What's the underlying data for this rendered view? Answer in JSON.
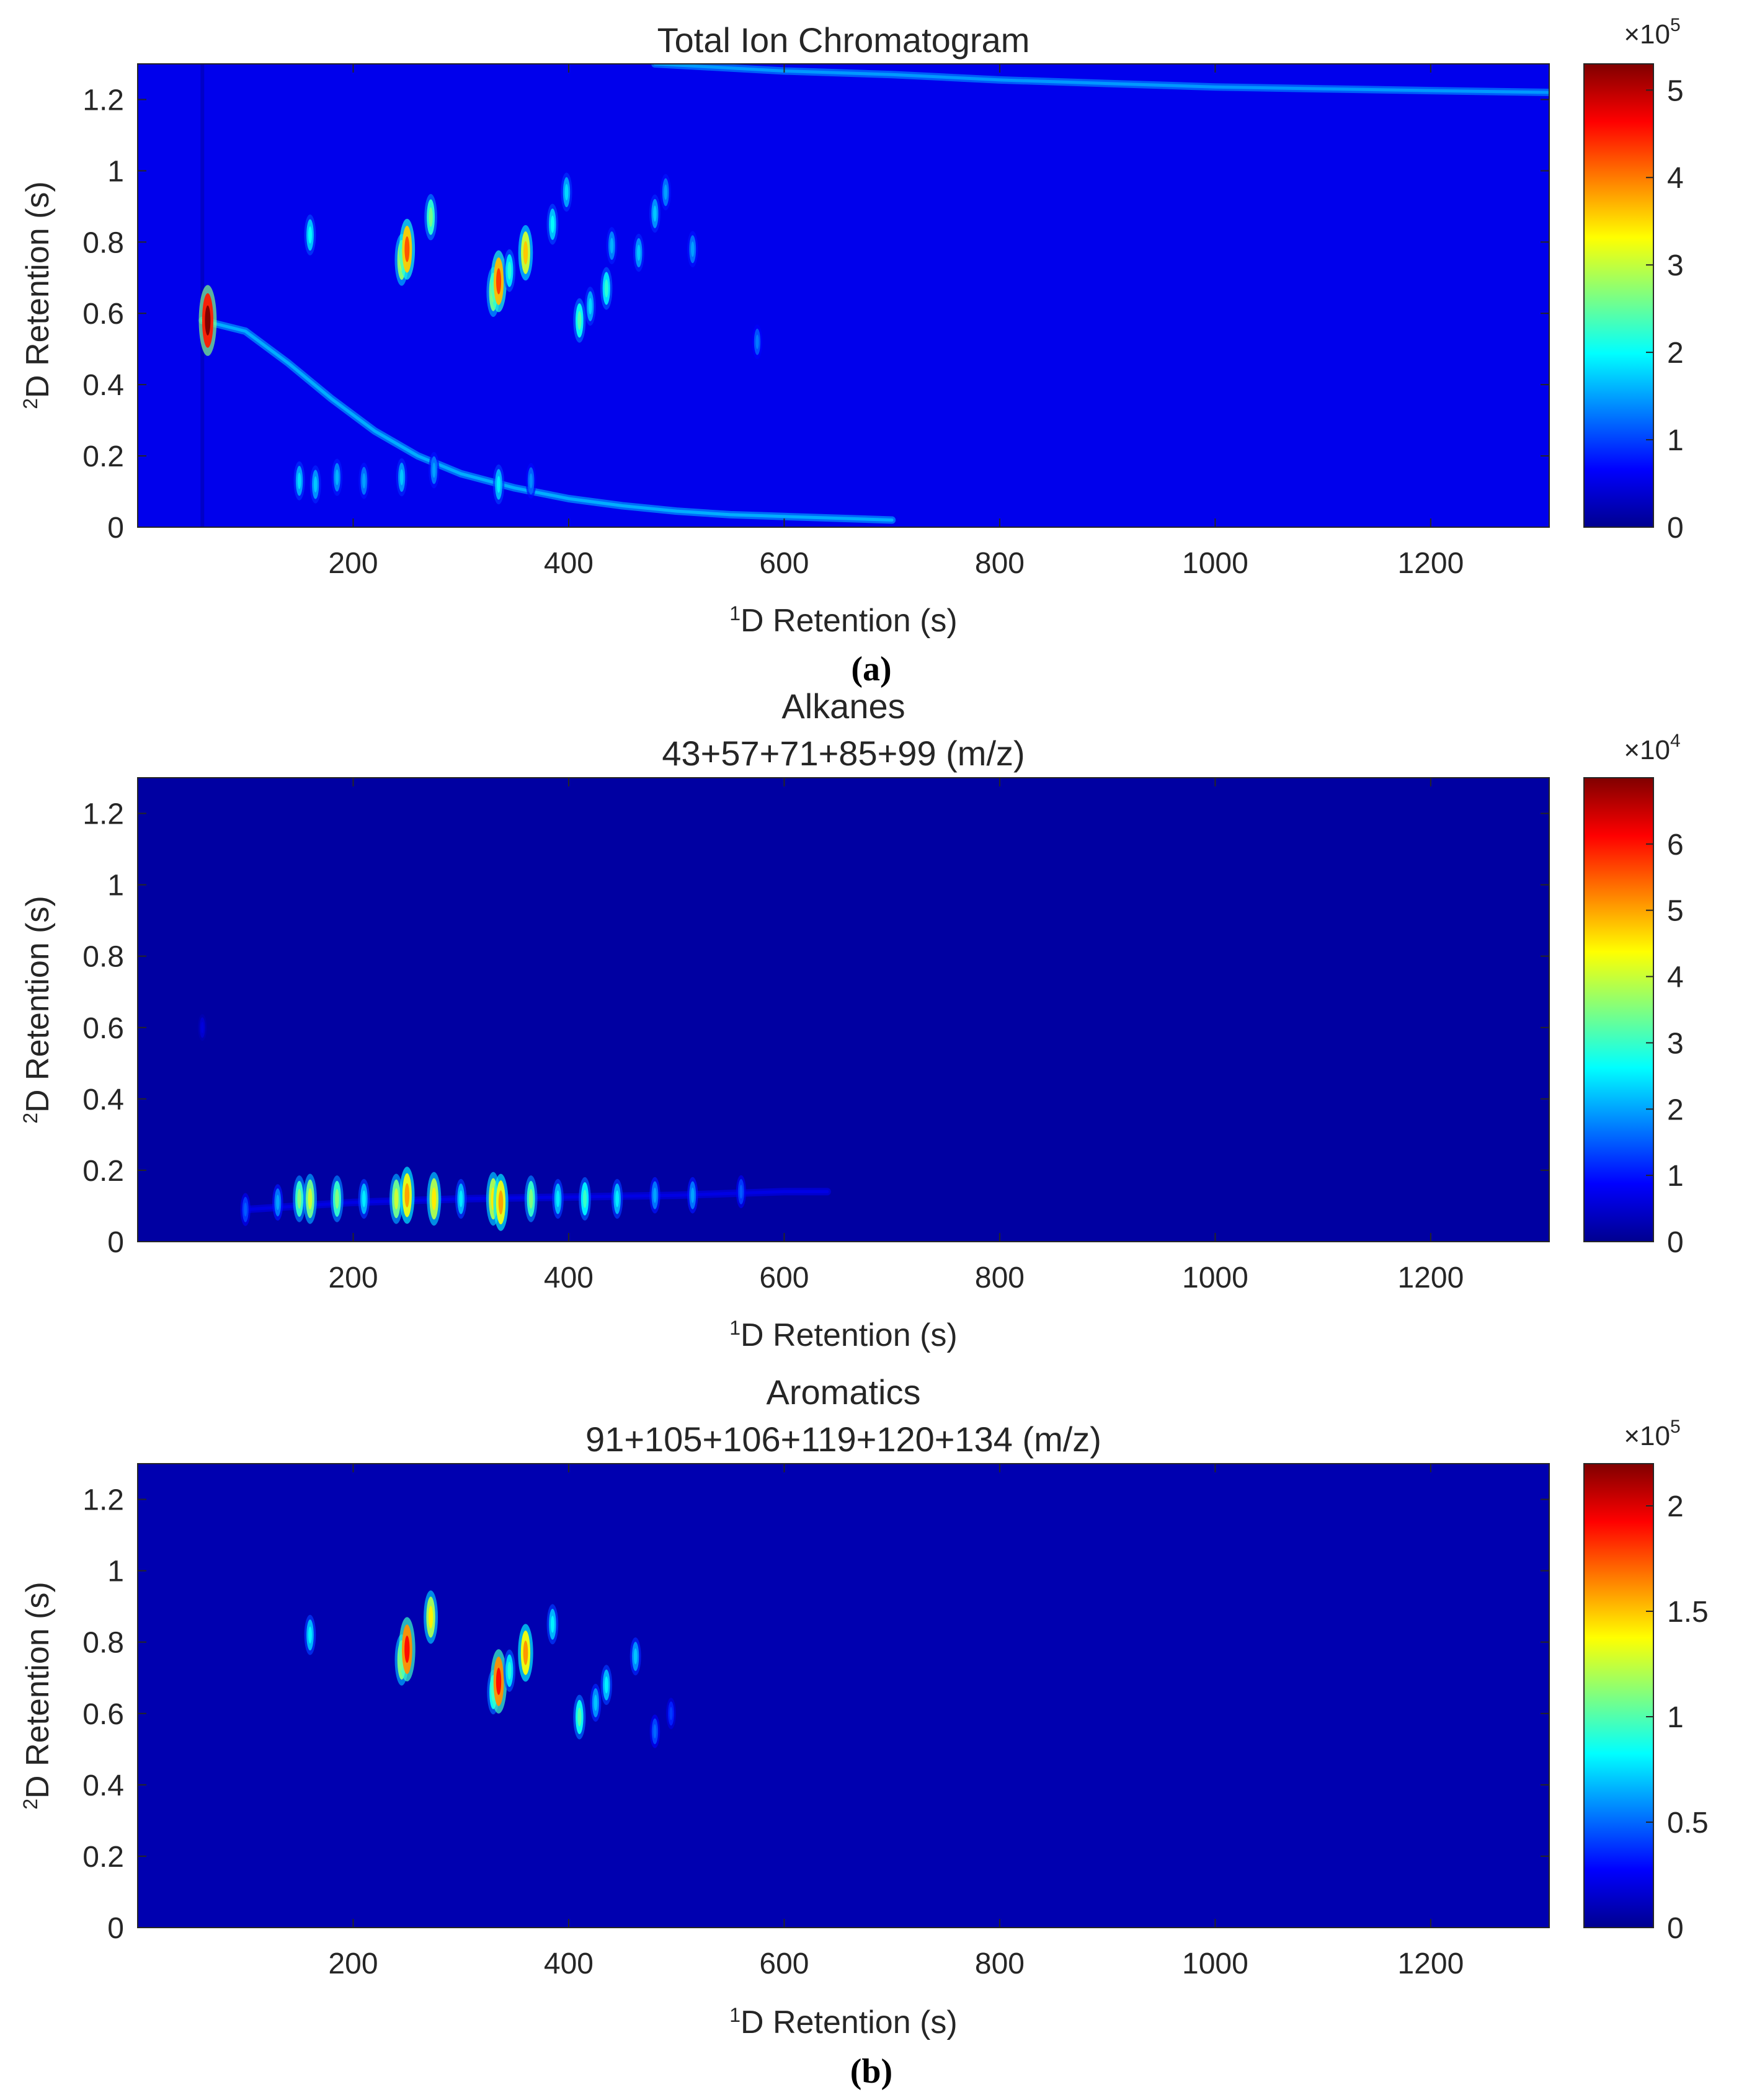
{
  "figure": {
    "captions": [
      "(a)",
      "(b)"
    ]
  },
  "colormap": "jet",
  "chart_data": [
    {
      "type": "heatmap",
      "title": "Total Ion Chromatogram",
      "subtitle": "",
      "xlabel": {
        "sup": "1",
        "text": "D Retention (s)"
      },
      "ylabel": {
        "sup": "2",
        "text": "D Retention (s)"
      },
      "xlim": [
        0,
        1310
      ],
      "ylim": [
        0,
        1.3
      ],
      "xticks": [
        200,
        400,
        600,
        800,
        1000,
        1200
      ],
      "xtick_labels": [
        "200",
        "400",
        "600",
        "800",
        "1000",
        "1200"
      ],
      "yticks": [
        0,
        0.2,
        0.4,
        0.6,
        0.8,
        1,
        1.2
      ],
      "ytick_labels": [
        "0",
        "0.2",
        "0.4",
        "0.6",
        "0.8",
        "1",
        "1.2"
      ],
      "colorbar": {
        "range": [
          0,
          5.3
        ],
        "ticks": [
          0,
          1,
          2,
          3,
          4,
          5
        ],
        "tick_labels": [
          "0",
          "1",
          "2",
          "3",
          "4",
          "5"
        ],
        "multiplier": {
          "base": "×10",
          "exp": "5"
        }
      },
      "background": 0.55,
      "column_bleed": {
        "x": 60,
        "y_max": 1.3,
        "value": 0.3
      },
      "bands": [
        {
          "name": "solvent-tail",
          "x": [
            60,
            100,
            140,
            180,
            220,
            260,
            300,
            350,
            400,
            450,
            500,
            550,
            600,
            700
          ],
          "y": [
            0.58,
            0.55,
            0.46,
            0.36,
            0.27,
            0.2,
            0.15,
            0.11,
            0.08,
            0.06,
            0.045,
            0.035,
            0.03,
            0.02
          ],
          "value": 1.4
        },
        {
          "name": "upper-baseline",
          "x": [
            480,
            600,
            700,
            800,
            900,
            1000,
            1100,
            1200,
            1310
          ],
          "y": [
            1.3,
            1.28,
            1.27,
            1.255,
            1.245,
            1.235,
            1.23,
            1.225,
            1.22
          ],
          "value": 1.3
        }
      ],
      "peaks": [
        {
          "x": 65,
          "y": 0.58,
          "value": 5.3
        },
        {
          "x": 160,
          "y": 0.82,
          "value": 2.0
        },
        {
          "x": 245,
          "y": 0.75,
          "value": 3.2
        },
        {
          "x": 250,
          "y": 0.78,
          "value": 4.2
        },
        {
          "x": 272,
          "y": 0.87,
          "value": 2.6
        },
        {
          "x": 330,
          "y": 0.66,
          "value": 3.0
        },
        {
          "x": 335,
          "y": 0.69,
          "value": 4.3
        },
        {
          "x": 345,
          "y": 0.72,
          "value": 2.2
        },
        {
          "x": 360,
          "y": 0.77,
          "value": 3.6
        },
        {
          "x": 385,
          "y": 0.85,
          "value": 2.0
        },
        {
          "x": 398,
          "y": 0.94,
          "value": 1.8
        },
        {
          "x": 410,
          "y": 0.58,
          "value": 2.4
        },
        {
          "x": 420,
          "y": 0.62,
          "value": 1.8
        },
        {
          "x": 435,
          "y": 0.67,
          "value": 2.2
        },
        {
          "x": 440,
          "y": 0.79,
          "value": 1.6
        },
        {
          "x": 465,
          "y": 0.77,
          "value": 1.7
        },
        {
          "x": 480,
          "y": 0.88,
          "value": 1.7
        },
        {
          "x": 490,
          "y": 0.94,
          "value": 1.5
        },
        {
          "x": 515,
          "y": 0.78,
          "value": 1.5
        },
        {
          "x": 575,
          "y": 0.52,
          "value": 1.3
        },
        {
          "x": 150,
          "y": 0.13,
          "value": 1.8
        },
        {
          "x": 165,
          "y": 0.12,
          "value": 1.7
        },
        {
          "x": 185,
          "y": 0.14,
          "value": 1.6
        },
        {
          "x": 210,
          "y": 0.13,
          "value": 1.5
        },
        {
          "x": 245,
          "y": 0.14,
          "value": 1.7
        },
        {
          "x": 275,
          "y": 0.16,
          "value": 1.5
        },
        {
          "x": 335,
          "y": 0.12,
          "value": 1.9
        },
        {
          "x": 365,
          "y": 0.13,
          "value": 1.4
        }
      ]
    },
    {
      "type": "heatmap",
      "title": "Alkanes",
      "subtitle": "43+57+71+85+99 (m/z)",
      "xlabel": {
        "sup": "1",
        "text": "D Retention (s)"
      },
      "ylabel": {
        "sup": "2",
        "text": "D Retention (s)"
      },
      "xlim": [
        0,
        1310
      ],
      "ylim": [
        0,
        1.3
      ],
      "xticks": [
        200,
        400,
        600,
        800,
        1000,
        1200
      ],
      "xtick_labels": [
        "200",
        "400",
        "600",
        "800",
        "1000",
        "1200"
      ],
      "yticks": [
        0,
        0.2,
        0.4,
        0.6,
        0.8,
        1,
        1.2
      ],
      "ytick_labels": [
        "0",
        "0.2",
        "0.4",
        "0.6",
        "0.8",
        "1",
        "1.2"
      ],
      "colorbar": {
        "range": [
          0,
          7
        ],
        "ticks": [
          0,
          1,
          2,
          3,
          4,
          5,
          6
        ],
        "tick_labels": [
          "0",
          "1",
          "2",
          "3",
          "4",
          "5",
          "6"
        ],
        "multiplier": {
          "base": "×10",
          "exp": "4"
        }
      },
      "background": 0.15,
      "column_bleed": null,
      "bands": [
        {
          "name": "alkane-row",
          "x": [
            100,
            200,
            300,
            400,
            500,
            600,
            640
          ],
          "y": [
            0.09,
            0.11,
            0.12,
            0.125,
            0.13,
            0.14,
            0.14
          ],
          "value": 0.6
        }
      ],
      "peaks": [
        {
          "x": 60,
          "y": 0.6,
          "value": 0.6
        },
        {
          "x": 100,
          "y": 0.09,
          "value": 1.5
        },
        {
          "x": 130,
          "y": 0.11,
          "value": 2.0
        },
        {
          "x": 150,
          "y": 0.12,
          "value": 3.5
        },
        {
          "x": 160,
          "y": 0.12,
          "value": 4.0
        },
        {
          "x": 185,
          "y": 0.12,
          "value": 3.5
        },
        {
          "x": 210,
          "y": 0.12,
          "value": 2.5
        },
        {
          "x": 240,
          "y": 0.12,
          "value": 4.0
        },
        {
          "x": 250,
          "y": 0.13,
          "value": 5.0
        },
        {
          "x": 275,
          "y": 0.12,
          "value": 4.5
        },
        {
          "x": 300,
          "y": 0.12,
          "value": 2.5
        },
        {
          "x": 330,
          "y": 0.12,
          "value": 4.5
        },
        {
          "x": 337,
          "y": 0.11,
          "value": 5.0
        },
        {
          "x": 365,
          "y": 0.12,
          "value": 3.5
        },
        {
          "x": 390,
          "y": 0.12,
          "value": 2.5
        },
        {
          "x": 415,
          "y": 0.12,
          "value": 3.0
        },
        {
          "x": 445,
          "y": 0.12,
          "value": 2.5
        },
        {
          "x": 480,
          "y": 0.13,
          "value": 2.0
        },
        {
          "x": 515,
          "y": 0.13,
          "value": 2.0
        },
        {
          "x": 560,
          "y": 0.14,
          "value": 1.5
        }
      ]
    },
    {
      "type": "heatmap",
      "title": "Aromatics",
      "subtitle": "91+105+106+119+120+134 (m/z)",
      "xlabel": {
        "sup": "1",
        "text": "D Retention (s)"
      },
      "ylabel": {
        "sup": "2",
        "text": "D Retention (s)"
      },
      "xlim": [
        0,
        1310
      ],
      "ylim": [
        0,
        1.3
      ],
      "xticks": [
        200,
        400,
        600,
        800,
        1000,
        1200
      ],
      "xtick_labels": [
        "200",
        "400",
        "600",
        "800",
        "1000",
        "1200"
      ],
      "yticks": [
        0,
        0.2,
        0.4,
        0.6,
        0.8,
        1,
        1.2
      ],
      "ytick_labels": [
        "0",
        "0.2",
        "0.4",
        "0.6",
        "0.8",
        "1",
        "1.2"
      ],
      "colorbar": {
        "range": [
          0,
          2.2
        ],
        "ticks": [
          0,
          0.5,
          1,
          1.5,
          2
        ],
        "tick_labels": [
          "0",
          "0.5",
          "1",
          "1.5",
          "2"
        ],
        "multiplier": {
          "base": "×10",
          "exp": "5"
        }
      },
      "background": 0.08,
      "column_bleed": null,
      "bands": [],
      "peaks": [
        {
          "x": 160,
          "y": 0.82,
          "value": 0.8
        },
        {
          "x": 245,
          "y": 0.75,
          "value": 1.3
        },
        {
          "x": 250,
          "y": 0.78,
          "value": 1.9
        },
        {
          "x": 272,
          "y": 0.87,
          "value": 1.4
        },
        {
          "x": 330,
          "y": 0.66,
          "value": 1.0
        },
        {
          "x": 335,
          "y": 0.69,
          "value": 1.9
        },
        {
          "x": 345,
          "y": 0.72,
          "value": 0.9
        },
        {
          "x": 360,
          "y": 0.77,
          "value": 1.6
        },
        {
          "x": 385,
          "y": 0.85,
          "value": 0.8
        },
        {
          "x": 410,
          "y": 0.59,
          "value": 1.0
        },
        {
          "x": 425,
          "y": 0.63,
          "value": 0.7
        },
        {
          "x": 435,
          "y": 0.68,
          "value": 0.8
        },
        {
          "x": 462,
          "y": 0.76,
          "value": 0.7
        },
        {
          "x": 480,
          "y": 0.55,
          "value": 0.5
        },
        {
          "x": 495,
          "y": 0.6,
          "value": 0.4
        }
      ]
    }
  ]
}
